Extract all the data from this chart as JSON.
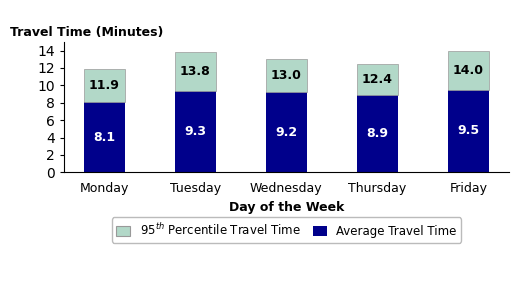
{
  "categories": [
    "Monday",
    "Tuesday",
    "Wednesday",
    "Thursday",
    "Friday"
  ],
  "avg_values": [
    8.1,
    9.3,
    9.2,
    8.9,
    9.5
  ],
  "p95_totals": [
    11.9,
    13.8,
    13.0,
    12.4,
    14.0
  ],
  "avg_color": "#00008B",
  "p95_color": "#B2D8C8",
  "avg_label": "Average Travel Time",
  "p95_label": "95$^{th}$ Percentile Travel Time",
  "ylabel": "Travel Time (Minutes)",
  "xlabel": "Day of the Week",
  "ylim": [
    0,
    15
  ],
  "yticks": [
    0,
    2,
    4,
    6,
    8,
    10,
    12,
    14
  ],
  "avg_text_color": "#FFFFFF",
  "p95_text_color": "#000000",
  "bar_width": 0.45
}
